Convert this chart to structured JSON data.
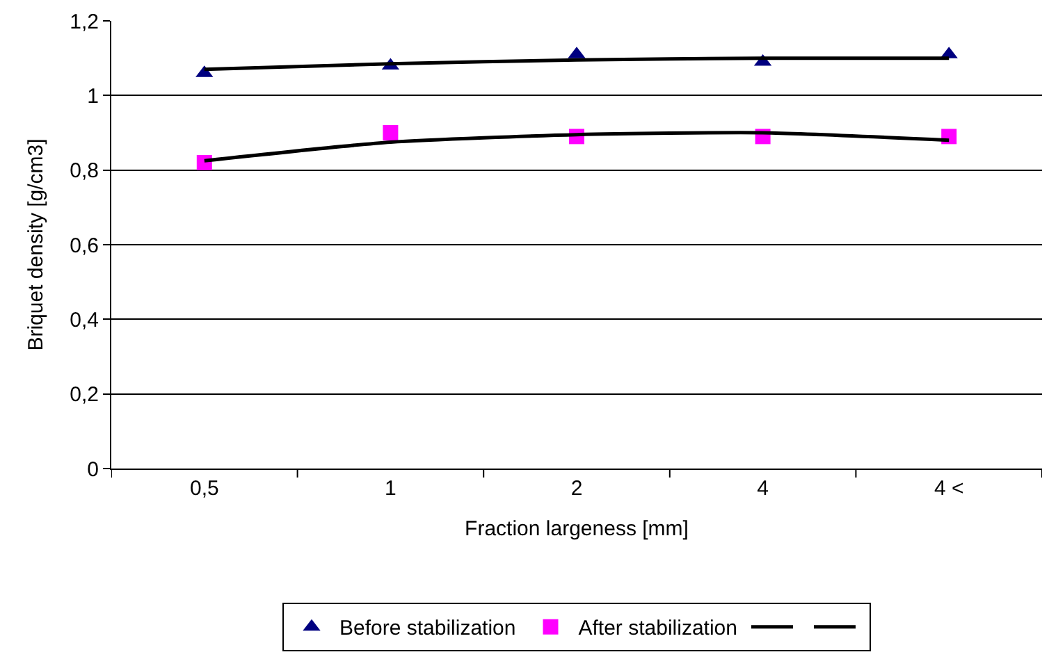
{
  "chart_data": {
    "type": "scatter",
    "xlabel": "Fraction largeness [mm]",
    "ylabel": "Briquet density [g/cm3]",
    "categories": [
      "0,5",
      "1",
      "2",
      "4",
      "4 <"
    ],
    "series": [
      {
        "name": "Before stabilization",
        "color": "#000080",
        "marker": "triangle",
        "values": [
          1.06,
          1.08,
          1.11,
          1.09,
          1.11
        ]
      },
      {
        "name": "After stabilization",
        "color": "#ff00ff",
        "marker": "square",
        "values": [
          0.82,
          0.9,
          0.89,
          0.89,
          0.89
        ]
      },
      {
        "type": "line",
        "color": "#000000",
        "marker": "none",
        "line_style": "solid",
        "values": [
          1.07,
          1.085,
          1.095,
          1.1,
          1.1
        ]
      },
      {
        "type": "line",
        "color": "#000000",
        "marker": "none",
        "line_style": "solid",
        "values": [
          0.825,
          0.875,
          0.895,
          0.9,
          0.88
        ]
      }
    ],
    "ylim": [
      0,
      1.2
    ],
    "yticks": [
      0,
      {
        "value": 0.2,
        "label": "0,2"
      },
      {
        "value": 0.4,
        "label": "0,4"
      },
      {
        "value": 0.6,
        "label": "0,6"
      },
      {
        "value": 0.8,
        "label": "0,8"
      },
      1,
      {
        "value": 1.2,
        "label": "1,2"
      }
    ],
    "grid": "y",
    "legend": "bottom"
  }
}
